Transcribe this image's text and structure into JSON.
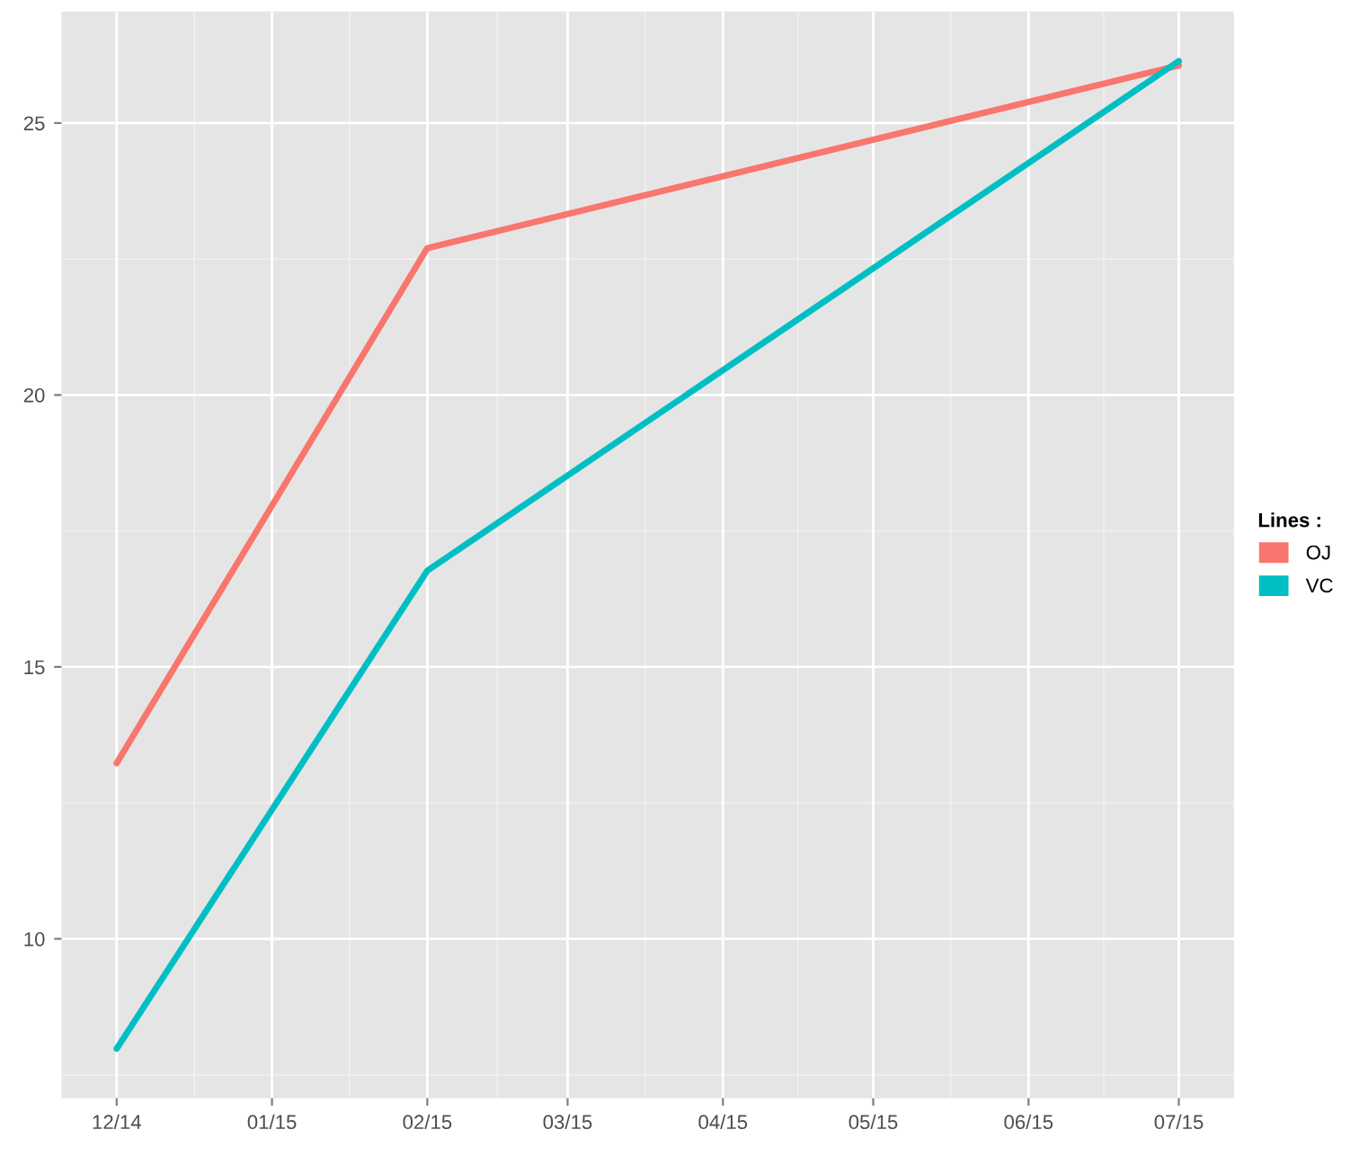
{
  "chart_data": {
    "type": "line",
    "legend_title": "Lines :",
    "x": [
      "2014-12-01",
      "2015-02-01",
      "2015-07-01"
    ],
    "series": [
      {
        "name": "OJ",
        "color": "#f8766d",
        "values": [
          13.23,
          22.7,
          26.06
        ]
      },
      {
        "name": "VC",
        "color": "#00bfc4",
        "values": [
          7.98,
          16.77,
          26.14
        ]
      }
    ],
    "xlim": [
      "2014-11-20",
      "2015-07-12"
    ],
    "xticks": [
      {
        "value": "2014-12-01",
        "label": "12/14"
      },
      {
        "value": "2015-01-01",
        "label": "01/15"
      },
      {
        "value": "2015-02-01",
        "label": "02/15"
      },
      {
        "value": "2015-03-01",
        "label": "03/15"
      },
      {
        "value": "2015-04-01",
        "label": "04/15"
      },
      {
        "value": "2015-05-01",
        "label": "05/15"
      },
      {
        "value": "2015-06-01",
        "label": "06/15"
      },
      {
        "value": "2015-07-01",
        "label": "07/15"
      }
    ],
    "ylim": [
      7.07,
      27.05
    ],
    "yticks": [
      10,
      15,
      20,
      25
    ],
    "grid": true,
    "legend": "right",
    "marker": "none",
    "line_style": "solid"
  }
}
